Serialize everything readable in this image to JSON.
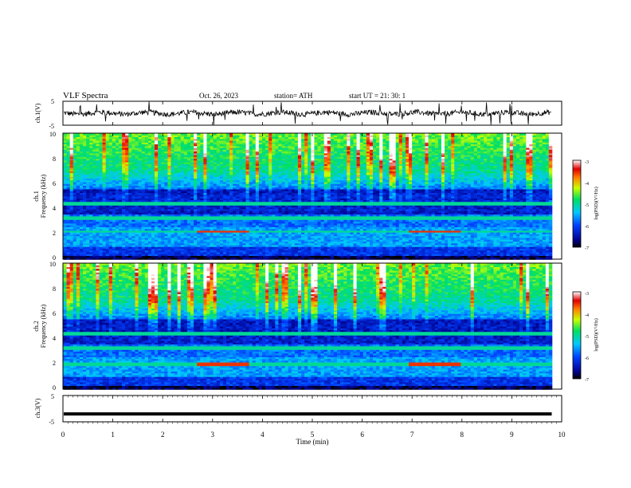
{
  "header": {
    "title": "VLF  Spectra",
    "date": "Oct. 26, 2023",
    "station": "station= ATH",
    "start": "start  UT  =    21: 30: 1"
  },
  "chart_data": [
    {
      "type": "line",
      "name": "ch1-waveform",
      "ylabel": "ch.1(V)",
      "ylim": [
        -5,
        5
      ],
      "yticks": [
        "5",
        "-5"
      ],
      "xlim": [
        0,
        10
      ]
    },
    {
      "type": "heatmap",
      "name": "ch1-spectrogram",
      "ylabel_top": "ch.1",
      "ylabel": "Frequency  (kHz)",
      "ylim": [
        0,
        10
      ],
      "yticks": [
        "10",
        "8",
        "6",
        "4",
        "2",
        "0"
      ],
      "xlim": [
        0,
        10
      ],
      "colorbar": {
        "label": "log(PSD)(V²/Hz)",
        "ticks": [
          "-3",
          "-4",
          "-5",
          "-6",
          "-7"
        ],
        "range": [
          -7,
          -3
        ]
      },
      "narrowband_lines_khz": [
        2.2,
        3.3,
        4.4
      ],
      "transmitter_segments": [
        {
          "t_start": 2.65,
          "t_end": 3.7,
          "freq_khz": 2.2
        },
        {
          "t_start": 6.9,
          "t_end": 7.95,
          "freq_khz": 2.2
        }
      ]
    },
    {
      "type": "heatmap",
      "name": "ch2-spectrogram",
      "ylabel_top": "ch.2",
      "ylabel": "Frequency  (kHz)",
      "ylim": [
        0,
        10
      ],
      "yticks": [
        "10",
        "8",
        "6",
        "4",
        "2",
        "0"
      ],
      "xlim": [
        0,
        10
      ],
      "colorbar": {
        "label": "log(PSD)(V²/Hz)",
        "ticks": [
          "-3",
          "-4",
          "-5",
          "-6",
          "-7"
        ],
        "range": [
          -7,
          -3
        ]
      },
      "narrowband_lines_khz": [
        2.0,
        3.3,
        4.4
      ],
      "transmitter_segments": [
        {
          "t_start": 2.65,
          "t_end": 3.7,
          "freq_khz": 2.0
        },
        {
          "t_start": 6.9,
          "t_end": 7.95,
          "freq_khz": 2.0
        }
      ]
    },
    {
      "type": "line",
      "name": "ch3-waveform",
      "ylabel": "ch.3(V)",
      "ylim": [
        -5,
        5
      ],
      "yticks": [
        "5",
        "-5"
      ],
      "xlim": [
        0,
        10
      ],
      "values_note_level": -2.0
    }
  ],
  "xaxis": {
    "label": "Time  (min)",
    "ticks": [
      "0",
      "1",
      "2",
      "3",
      "4",
      "5",
      "6",
      "7",
      "8",
      "9",
      "10"
    ],
    "range": [
      0,
      10
    ],
    "data_end": 9.8
  },
  "colors": {
    "background": "#ffffff",
    "axis": "#000000"
  }
}
